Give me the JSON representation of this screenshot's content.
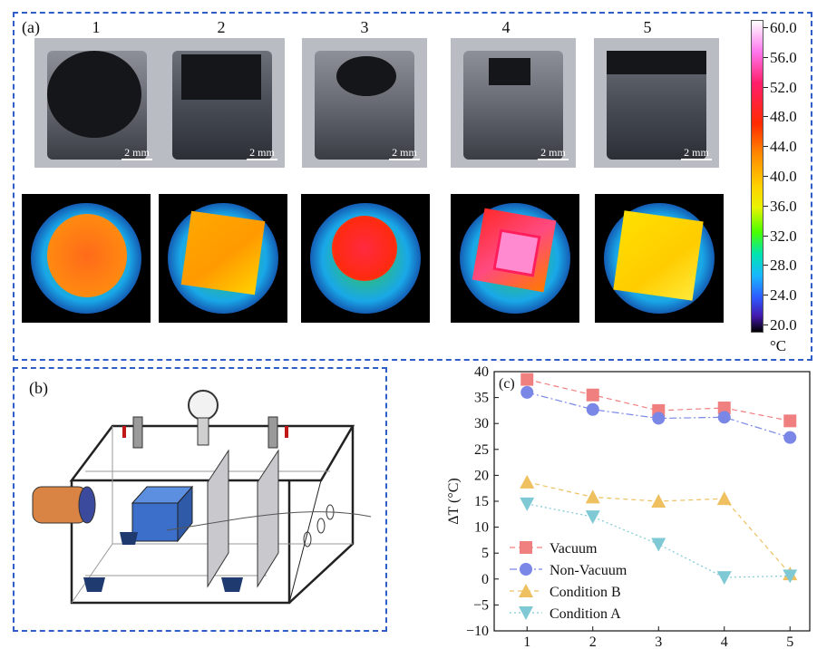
{
  "panel_a": {
    "label": "(a)",
    "columns": [
      "1",
      "2",
      "3",
      "4",
      "5"
    ],
    "scale_label": "2 mm",
    "colorbar": {
      "ticks": [
        "60.0",
        "56.0",
        "52.0",
        "48.0",
        "44.0",
        "40.0",
        "36.0",
        "32.0",
        "28.0",
        "24.0",
        "20.0"
      ],
      "unit": "°C"
    }
  },
  "panel_b": {
    "label": "(b)"
  },
  "panel_c": {
    "label": "(c)",
    "ylabel": "ΔT (°C)"
  },
  "colors": {
    "frame": "#2f5ec9",
    "vacuum": "#f08080",
    "non_vacuum": "#7a87e6",
    "condition_b": "#eec060",
    "condition_a": "#7fc9d4"
  },
  "chart_data": {
    "type": "line",
    "x": [
      1,
      2,
      3,
      4,
      5
    ],
    "xticks": [
      "1",
      "2",
      "3",
      "4",
      "5"
    ],
    "ylim": [
      -10,
      40
    ],
    "yticks": [
      "−10",
      "−5",
      "0",
      "5",
      "10",
      "15",
      "20",
      "25",
      "30",
      "35",
      "40"
    ],
    "ylabel": "ΔT (°C)",
    "legend_position": "bottom-left",
    "series": [
      {
        "name": "Vacuum",
        "values": [
          38.5,
          35.5,
          32.5,
          33.0,
          30.5
        ],
        "marker": "square",
        "color": "#f08080"
      },
      {
        "name": "Non-Vacuum",
        "values": [
          36.0,
          32.7,
          31.0,
          31.2,
          27.3
        ],
        "marker": "circle",
        "color": "#7a87e6"
      },
      {
        "name": "Condition B",
        "values": [
          18.7,
          15.8,
          15.0,
          15.5,
          1.0
        ],
        "marker": "triangle-up",
        "color": "#eec060"
      },
      {
        "name": "Condition A",
        "values": [
          14.5,
          12.0,
          6.7,
          0.3,
          0.6
        ],
        "marker": "triangle-down",
        "color": "#7fc9d4"
      }
    ]
  }
}
